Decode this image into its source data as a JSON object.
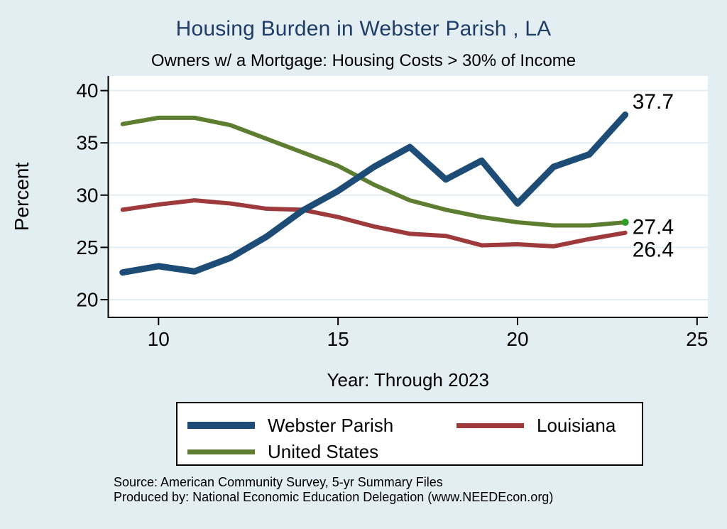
{
  "page": {
    "title": "Housing Burden in Webster Parish , LA",
    "subtitle": "Owners w/ a Mortgage: Housing Costs > 30% of Income",
    "source_line1": "Source: American Community Survey, 5-yr Summary Files",
    "source_line2": "Produced by: National Economic Education Delegation (www.NEEDEcon.org)"
  },
  "colors": {
    "background": "#e3eef2",
    "plot_bg": "#ffffff",
    "grid": "#e4eef3",
    "axis": "#000000",
    "title_text": "#1f3d66",
    "end_dot": "#2f9e28"
  },
  "chart_data": {
    "type": "line",
    "title": "Housing Burden in Webster Parish , LA",
    "subtitle": "Owners w/ a Mortgage: Housing Costs > 30% of Income",
    "xlabel": "Year: Through 2023",
    "ylabel": "Percent",
    "grid": true,
    "legend_position": "bottom",
    "x": [
      9,
      10,
      11,
      12,
      13,
      14,
      15,
      16,
      17,
      18,
      19,
      20,
      21,
      22,
      23
    ],
    "xticks": [
      10,
      15,
      20,
      25
    ],
    "yticks": [
      20,
      25,
      30,
      35,
      40
    ],
    "xlim": [
      8.6,
      25.3
    ],
    "ylim": [
      18.3,
      41.4
    ],
    "series": [
      {
        "name": "Webster Parish",
        "color": "#1d4d77",
        "width": 9,
        "values": [
          22.6,
          23.2,
          22.7,
          24.0,
          26.0,
          28.5,
          30.4,
          32.7,
          34.6,
          31.5,
          33.3,
          29.2,
          32.7,
          33.9,
          37.7
        ],
        "end_label": "37.7",
        "end_marker": false
      },
      {
        "name": "Louisiana",
        "color": "#9e3a3c",
        "width": 6,
        "values": [
          28.6,
          29.1,
          29.5,
          29.2,
          28.7,
          28.6,
          27.9,
          27.0,
          26.3,
          26.1,
          25.2,
          25.3,
          25.1,
          25.8,
          26.4
        ],
        "end_label": "26.4",
        "end_marker": false
      },
      {
        "name": "United States",
        "color": "#5d7e30",
        "width": 6,
        "values": [
          36.8,
          37.4,
          37.4,
          36.7,
          35.4,
          34.1,
          32.8,
          31.0,
          29.5,
          28.6,
          27.9,
          27.4,
          27.1,
          27.1,
          27.4
        ],
        "end_label": "27.4",
        "end_marker": true
      }
    ]
  }
}
